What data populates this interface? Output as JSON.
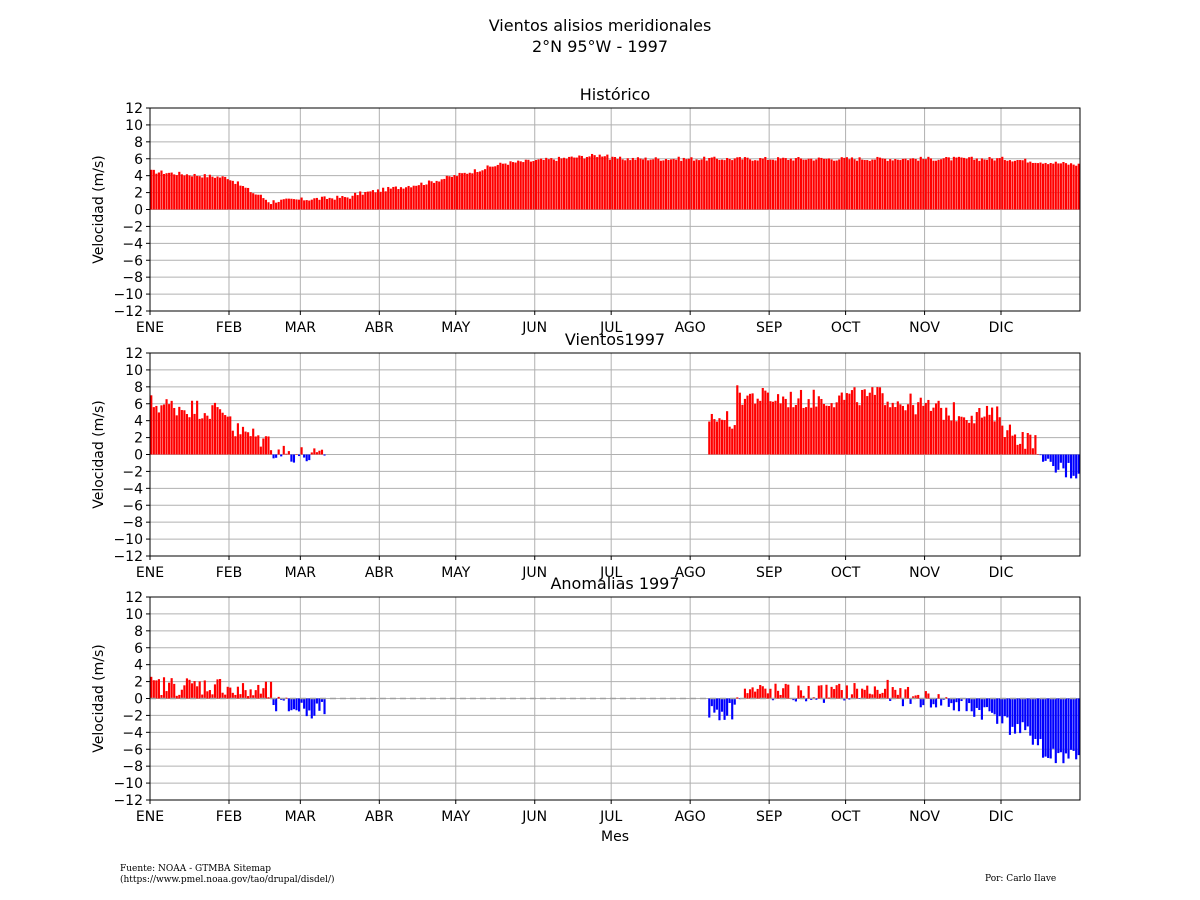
{
  "figure": {
    "title_line1": "Vientos alisios meridionales",
    "title_line2": "2°N 95°W - 1997",
    "source_line1": "Fuente: NOAA - GTMBA Sitemap",
    "source_line2": "(https://www.pmel.noaa.gov/tao/drupal/disdel/)",
    "author": "Por: Carlo Ilave",
    "colors": {
      "positive": "#ff0000",
      "negative": "#0000ff",
      "grid": "#b0b0b0",
      "zero_line": "#a0a0a0"
    }
  },
  "chart_data": [
    {
      "type": "bar",
      "title": "Histórico",
      "ylabel": "Velocidad (m/s)",
      "xlabel": "",
      "ylim": [
        -12,
        12
      ],
      "yticks": [
        12,
        10,
        8,
        6,
        4,
        2,
        0,
        -2,
        -4,
        -6,
        -8,
        -10,
        -12
      ],
      "month_labels": [
        "ENE",
        "FEB",
        "MAR",
        "ABR",
        "MAY",
        "JUN",
        "JUL",
        "AGO",
        "SEP",
        "OCT",
        "NOV",
        "DIC"
      ],
      "grid": true,
      "day_range": [
        1,
        365
      ],
      "segments": [
        {
          "start": 1,
          "end": 30,
          "from": 4.5,
          "to": 3.8
        },
        {
          "start": 31,
          "end": 42,
          "from": 3.8,
          "to": 1.8
        },
        {
          "start": 43,
          "end": 48,
          "from": 1.8,
          "to": 0.8
        },
        {
          "start": 49,
          "end": 80,
          "from": 1.0,
          "to": 1.5
        },
        {
          "start": 81,
          "end": 110,
          "from": 1.8,
          "to": 3.2
        },
        {
          "start": 111,
          "end": 140,
          "from": 3.3,
          "to": 5.5
        },
        {
          "start": 141,
          "end": 180,
          "from": 5.5,
          "to": 6.5
        },
        {
          "start": 181,
          "end": 335,
          "from": 6.0,
          "to": 6.0
        },
        {
          "start": 336,
          "end": 365,
          "from": 6.0,
          "to": 5.3
        }
      ]
    },
    {
      "type": "bar",
      "title": "Vientos1997",
      "ylabel": "Velocidad (m/s)",
      "xlabel": "",
      "ylim": [
        -12,
        12
      ],
      "yticks": [
        12,
        10,
        8,
        6,
        4,
        2,
        0,
        -2,
        -4,
        -6,
        -8,
        -10,
        -12
      ],
      "month_labels": [
        "ENE",
        "FEB",
        "MAR",
        "ABR",
        "MAY",
        "JUN",
        "JUL",
        "AGO",
        "SEP",
        "OCT",
        "NOV",
        "DIC"
      ],
      "grid": true,
      "day_range": [
        1,
        365
      ],
      "segments": [
        {
          "start": 1,
          "end": 32,
          "from": 6.0,
          "to": 5.0
        },
        {
          "start": 33,
          "end": 48,
          "from": 3.0,
          "to": 1.5
        },
        {
          "start": 49,
          "end": 69,
          "from": 0.5,
          "to": -0.5
        },
        {
          "start": 220,
          "end": 230,
          "from": 4.5,
          "to": 4.0
        },
        {
          "start": 231,
          "end": 255,
          "from": 7.0,
          "to": 6.5
        },
        {
          "start": 256,
          "end": 290,
          "from": 6.5,
          "to": 7.0
        },
        {
          "start": 291,
          "end": 315,
          "from": 6.5,
          "to": 5.0
        },
        {
          "start": 316,
          "end": 335,
          "from": 5.0,
          "to": 4.5
        },
        {
          "start": 336,
          "end": 350,
          "from": 3.0,
          "to": 1.0
        },
        {
          "start": 351,
          "end": 365,
          "from": -1.5,
          "to": -2.0
        }
      ]
    },
    {
      "type": "bar",
      "title": "Anomalias 1997",
      "ylabel": "Velocidad (m/s)",
      "xlabel": "Mes",
      "ylim": [
        -12,
        12
      ],
      "yticks": [
        12,
        10,
        8,
        6,
        4,
        2,
        0,
        -2,
        -4,
        -6,
        -8,
        -10,
        -12
      ],
      "month_labels": [
        "ENE",
        "FEB",
        "MAR",
        "ABR",
        "MAY",
        "JUN",
        "JUL",
        "AGO",
        "SEP",
        "OCT",
        "NOV",
        "DIC"
      ],
      "grid": true,
      "zero_line": "dashed",
      "day_range": [
        1,
        365
      ],
      "segments": [
        {
          "start": 1,
          "end": 32,
          "from": 1.5,
          "to": 1.5
        },
        {
          "start": 33,
          "end": 48,
          "from": 0.8,
          "to": 0.8
        },
        {
          "start": 49,
          "end": 69,
          "from": -0.8,
          "to": -1.5
        },
        {
          "start": 220,
          "end": 230,
          "from": -1.5,
          "to": -1.5
        },
        {
          "start": 231,
          "end": 255,
          "from": 1.0,
          "to": 0.5
        },
        {
          "start": 256,
          "end": 290,
          "from": 0.5,
          "to": 1.0
        },
        {
          "start": 291,
          "end": 315,
          "from": 0.5,
          "to": -0.5
        },
        {
          "start": 316,
          "end": 335,
          "from": -0.8,
          "to": -2.0
        },
        {
          "start": 336,
          "end": 350,
          "from": -3.0,
          "to": -5.0
        },
        {
          "start": 351,
          "end": 365,
          "from": -7.0,
          "to": -6.5
        }
      ]
    }
  ]
}
